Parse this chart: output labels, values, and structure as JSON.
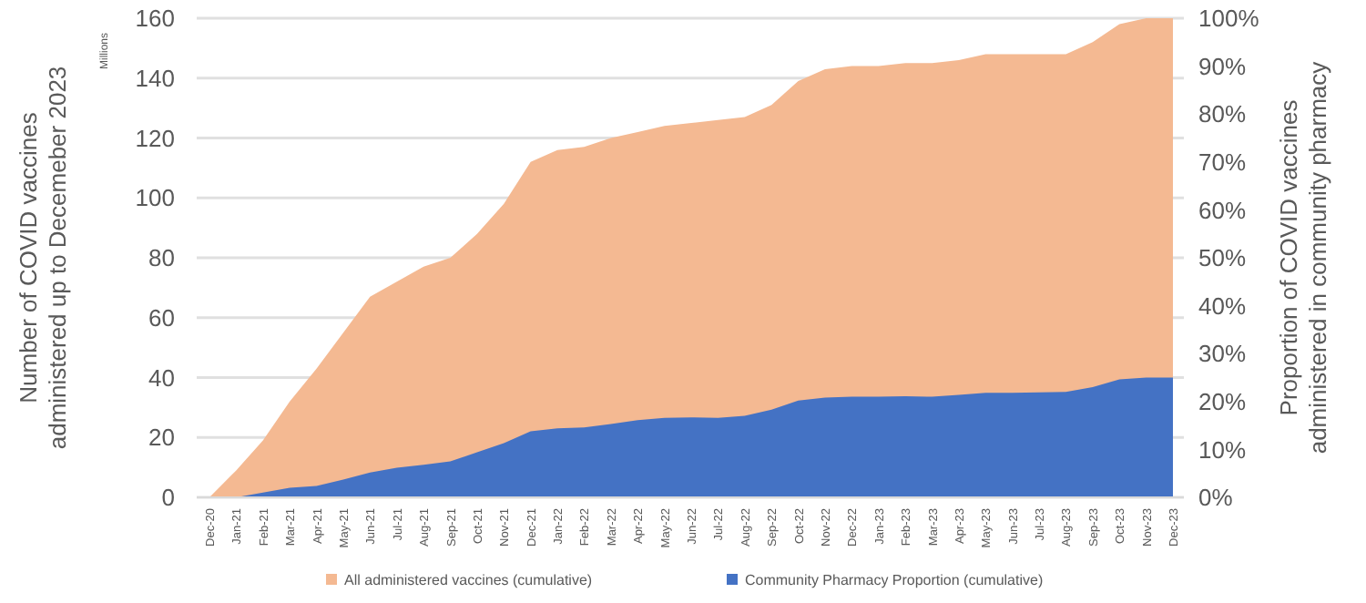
{
  "chart_data": {
    "type": "area",
    "ylabel": "Number of COVID vaccines administered up to Decemeber 2023",
    "y2label": "Proportion of COVID vaccines administered in community pharmacy",
    "annotations": [
      "Millions"
    ],
    "categories": [
      "Dec-20",
      "Jan-21",
      "Feb-21",
      "Mar-21",
      "Apr-21",
      "May-21",
      "Jun-21",
      "Jul-21",
      "Aug-21",
      "Sep-21",
      "Oct-21",
      "Nov-21",
      "Dec-21",
      "Jan-22",
      "Feb-22",
      "Mar-22",
      "Apr-22",
      "May-22",
      "Jun-22",
      "Jul-22",
      "Aug-22",
      "Sep-22",
      "Oct-22",
      "Nov-22",
      "Dec-22",
      "Jan-23",
      "Feb-23",
      "Mar-23",
      "Apr-23",
      "May-23",
      "Jun-23",
      "Jul-23",
      "Aug-23",
      "Sep-23",
      "Oct-23",
      "Nov-23",
      "Dec-23"
    ],
    "series": [
      {
        "name": "All administered vaccines (cumulative)",
        "color": "#f4b992",
        "values": [
          0,
          9,
          19,
          32,
          43,
          55,
          67,
          72,
          77,
          80,
          88,
          98,
          112,
          116,
          117,
          120,
          122,
          124,
          125,
          126,
          127,
          131,
          139,
          143,
          144,
          144,
          145,
          145,
          146,
          148,
          148,
          148,
          148,
          152,
          158,
          160,
          160
        ]
      },
      {
        "name": "Community Pharmacy Proportion (cumulative)",
        "color": "#4472c4",
        "axis": "y2",
        "values": [
          0,
          0,
          1,
          2,
          2.4,
          3.7,
          5.2,
          6.2,
          6.8,
          7.5,
          9.4,
          11.3,
          13.8,
          14.4,
          14.6,
          15.3,
          16.1,
          16.6,
          16.7,
          16.6,
          17,
          18.3,
          20.2,
          20.8,
          21,
          21,
          21.1,
          21,
          21.4,
          21.8,
          21.8,
          21.9,
          22,
          23,
          24.6,
          25,
          25
        ]
      }
    ],
    "ylim": [
      0,
      160
    ],
    "yticks": [
      0,
      20,
      40,
      60,
      80,
      100,
      120,
      140,
      160
    ],
    "y2lim": [
      0,
      100
    ],
    "y2ticks": [
      {
        "value": 0,
        "label": "0%"
      },
      {
        "value": 10,
        "label": "10%"
      },
      {
        "value": 20,
        "label": "20%"
      },
      {
        "value": 30,
        "label": "30%"
      },
      {
        "value": 40,
        "label": "40%"
      },
      {
        "value": 50,
        "label": "50%"
      },
      {
        "value": 60,
        "label": "60%"
      },
      {
        "value": 70,
        "label": "70%"
      },
      {
        "value": 80,
        "label": "80%"
      },
      {
        "value": 90,
        "label": "90%"
      },
      {
        "value": 100,
        "label": "100%"
      }
    ],
    "grid": "y",
    "legend": "bottom"
  }
}
